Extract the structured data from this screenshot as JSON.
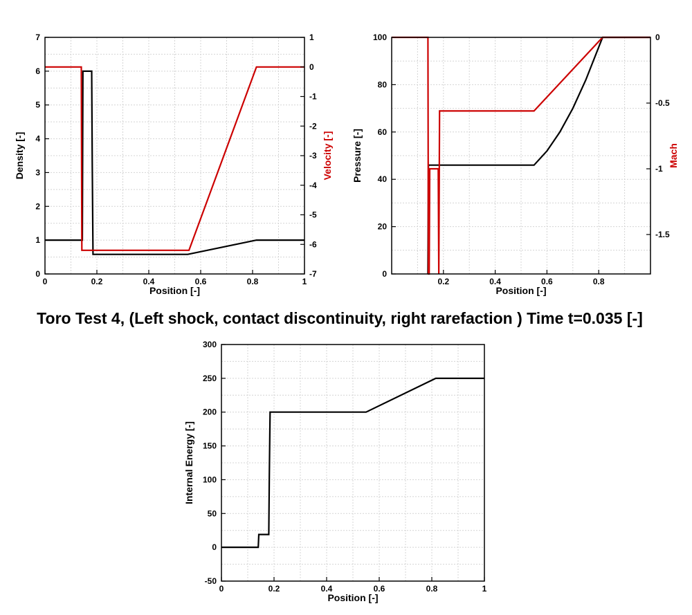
{
  "title": "Toro Test 4, (Left shock, contact discontinuity, right rarefaction ) Time t=0.035 [-]",
  "colors": {
    "primary": "#000000",
    "secondary": "#cc0000",
    "grid": "#d4d4d4"
  },
  "chart_data": [
    {
      "type": "line",
      "name": "density-velocity",
      "xlabel": "Position [-]",
      "ylabel": "Density [-]",
      "y2label": "Velocity [-]",
      "xlim": [
        0,
        1
      ],
      "ylim": [
        0,
        7
      ],
      "y2lim": [
        -7,
        1
      ],
      "xticks": [
        0,
        0.2,
        0.4,
        0.6,
        0.8,
        1
      ],
      "xtick_labels": [
        "0",
        "0.2",
        "0.4",
        "0.6",
        "0.8",
        "1"
      ],
      "yticks": [
        0,
        1,
        2,
        3,
        4,
        5,
        6,
        7
      ],
      "ytick_labels": [
        "0",
        "1",
        "2",
        "3",
        "4",
        "5",
        "6",
        "7"
      ],
      "y2ticks": [
        -7,
        -6,
        -5,
        -4,
        -3,
        -2,
        -1,
        0,
        1
      ],
      "y2tick_labels": [
        "-7",
        "-6",
        "-5",
        "-4",
        "-3",
        "-2",
        "-1",
        "0",
        "1"
      ],
      "grid": true,
      "series": [
        {
          "axis": "left",
          "color": "#000000",
          "x": [
            0,
            0.144,
            0.146,
            0.18,
            0.182,
            0.185,
            0.55,
            0.815,
            1
          ],
          "y": [
            1.0,
            1.0,
            6.0,
            6.0,
            3.3,
            0.58,
            0.58,
            1.0,
            1.0
          ]
        },
        {
          "axis": "right",
          "color": "#cc0000",
          "x": [
            0,
            0.14,
            0.142,
            0.555,
            0.815,
            1
          ],
          "y": [
            0,
            0,
            -6.2,
            -6.2,
            0,
            0
          ]
        }
      ]
    },
    {
      "type": "line",
      "name": "pressure-mach",
      "xlabel": "Position [-]",
      "ylabel": "Pressure [-]",
      "y2label": "Mach",
      "xlim": [
        0,
        1
      ],
      "ylim": [
        0,
        100
      ],
      "y2lim": [
        -1.8,
        0
      ],
      "xticks": [
        0.2,
        0.4,
        0.6,
        0.8
      ],
      "xtick_labels": [
        "0.2",
        "0.4",
        "0.6",
        "0.8"
      ],
      "yticks": [
        0,
        20,
        40,
        60,
        80,
        100
      ],
      "ytick_labels": [
        "0",
        "20",
        "40",
        "60",
        "80",
        "100"
      ],
      "y2ticks": [
        -1.5,
        -1,
        -0.5,
        0
      ],
      "y2tick_labels": [
        "-1.5",
        "-1",
        "-0.5",
        "0"
      ],
      "grid": true,
      "series": [
        {
          "axis": "left",
          "color": "#000000",
          "x": [
            0.14,
            0.142,
            0.55,
            0.6,
            0.65,
            0.7,
            0.75,
            0.815,
            0.82,
            1
          ],
          "y": [
            0,
            46,
            46,
            52,
            60,
            70,
            82,
            100,
            100,
            100
          ]
        },
        {
          "axis": "right",
          "color": "#cc0000",
          "x": [
            0,
            0.14,
            0.142,
            0.145,
            0.147,
            0.18,
            0.182,
            0.185,
            0.55,
            0.815,
            1
          ],
          "y": [
            0,
            0,
            -1.8,
            -1.8,
            -1.0,
            -1.0,
            -1.8,
            -0.56,
            -0.56,
            0,
            0
          ]
        }
      ]
    },
    {
      "type": "line",
      "name": "internal-energy",
      "xlabel": "Position [-]",
      "ylabel": "Internal Energy [-]",
      "xlim": [
        0,
        1
      ],
      "ylim": [
        -50,
        300
      ],
      "xticks": [
        0,
        0.2,
        0.4,
        0.6,
        0.8,
        1
      ],
      "xtick_labels": [
        "0",
        "0.2",
        "0.4",
        "0.6",
        "0.8",
        "1"
      ],
      "yticks": [
        -50,
        0,
        50,
        100,
        150,
        200,
        250,
        300
      ],
      "ytick_labels": [
        "-50",
        "0",
        "50",
        "100",
        "150",
        "200",
        "250",
        "300"
      ],
      "grid": true,
      "series": [
        {
          "axis": "left",
          "color": "#000000",
          "x": [
            0,
            0.14,
            0.142,
            0.18,
            0.182,
            0.185,
            0.55,
            0.815,
            1
          ],
          "y": [
            0,
            0,
            19,
            19,
            107,
            200,
            200,
            250,
            250
          ]
        }
      ]
    }
  ]
}
